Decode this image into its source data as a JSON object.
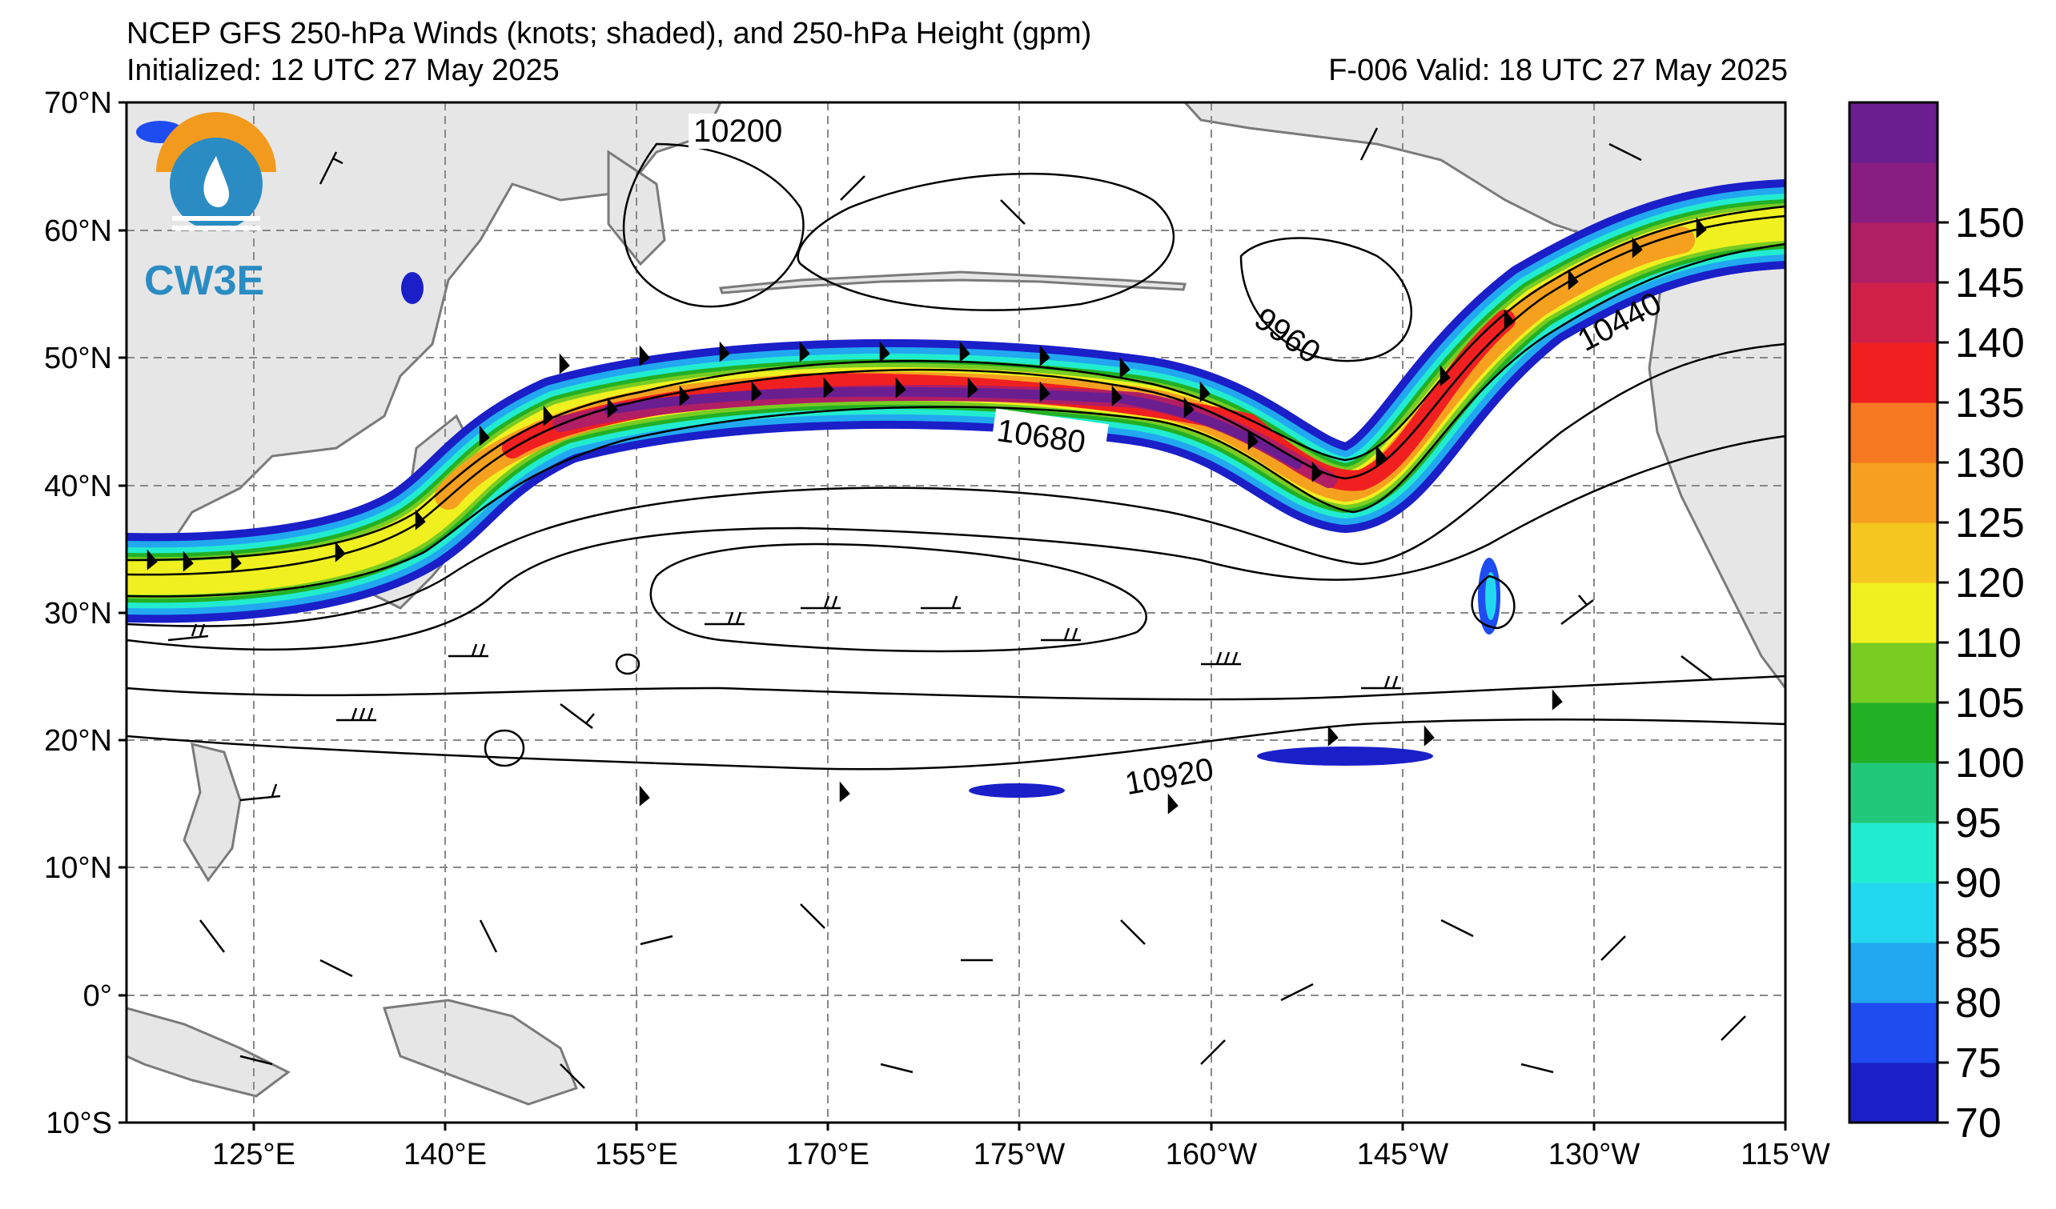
{
  "title": {
    "line1": "NCEP GFS 250-hPa Winds (knots; shaded), and 250-hPa Height (gpm)",
    "initialized": "Initialized: 12 UTC 27 May 2025",
    "valid": "F-006  Valid: 18 UTC 27 May 2025"
  },
  "logo": {
    "text": "CW3E",
    "icon": "water-drop-sun-logo-icon"
  },
  "axes": {
    "lat_labels": [
      "70°N",
      "60°N",
      "50°N",
      "40°N",
      "30°N",
      "20°N",
      "10°N",
      "0°",
      "10°S"
    ],
    "lon_labels": [
      "125°E",
      "140°E",
      "155°E",
      "170°E",
      "175°W",
      "160°W",
      "145°W",
      "130°W",
      "115°W"
    ]
  },
  "colorbar": {
    "labels": [
      "70",
      "75",
      "80",
      "85",
      "90",
      "95",
      "100",
      "105",
      "110",
      "120",
      "125",
      "130",
      "135",
      "140",
      "145",
      "150"
    ],
    "colors": [
      "#1b1fc8",
      "#1f4cf0",
      "#22a8f0",
      "#22d8f0",
      "#22ecd0",
      "#22c87a",
      "#22b025",
      "#78cc22",
      "#f0f020",
      "#f6c620",
      "#f6a020",
      "#f67820",
      "#f02020",
      "#d0204a",
      "#b01e64",
      "#8a1e80",
      "#6a1e90"
    ]
  },
  "contour_labels": [
    "10200",
    "9960",
    "10440",
    "10680",
    "10920"
  ],
  "colors": {
    "land": "#e6e6e6",
    "coast": "#7a7a7a",
    "grid": "#888888"
  }
}
